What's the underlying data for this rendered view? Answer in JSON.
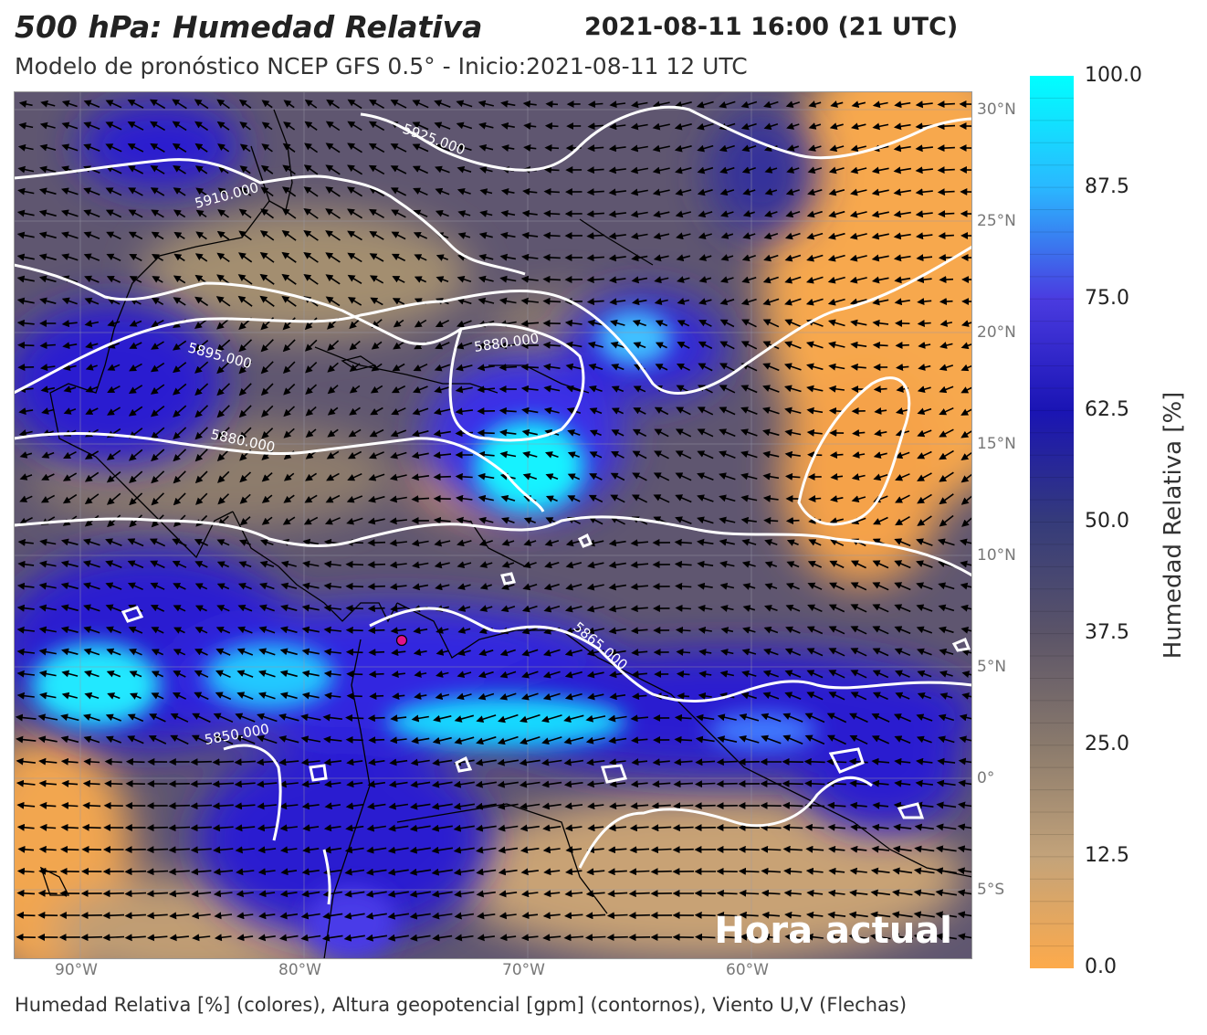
{
  "header": {
    "title": "500 hPa: Humedad Relativa",
    "datetime": "2021-08-11 16:00 (21 UTC)",
    "subtitle": "Modelo de pronóstico NCEP GFS 0.5° - Inicio:2021-08-11 12 UTC"
  },
  "footer": "Humedad Relativa [%] (colores), Altura geopotencial [gpm] (contornos), Viento U,V (Flechas)",
  "map": {
    "overlay_label": "Hora actual",
    "lon_ticks": [
      "90°W",
      "80°W",
      "70°W",
      "60°W"
    ],
    "lat_ticks": [
      "30°N",
      "25°N",
      "20°N",
      "15°N",
      "10°N",
      "5°N",
      "0°",
      "5°S"
    ],
    "contour_labels": [
      "5925.000",
      "5910.000",
      "5895.000",
      "5880.000",
      "5880.000",
      "5865.000",
      "5850.000"
    ],
    "colors": {
      "humid_high": "#12f2ff",
      "humid_mid": "#2a1fd0",
      "neutral": "#5f5670",
      "dry": "#f7a84d",
      "contour": "#ffffff",
      "marker": "#e0138a"
    }
  },
  "colorbar": {
    "label": "Humedad Relativa [%]",
    "ticks": [
      "100.0",
      "87.5",
      "75.0",
      "62.5",
      "50.0",
      "37.5",
      "25.0",
      "12.5",
      "0.0"
    ],
    "stops": [
      "#00ffff",
      "#2ab8ff",
      "#4a3be0",
      "#1a14b4",
      "#353b7a",
      "#5b5468",
      "#8a7a6c",
      "#c3a37a",
      "#fdaa4b"
    ]
  }
}
